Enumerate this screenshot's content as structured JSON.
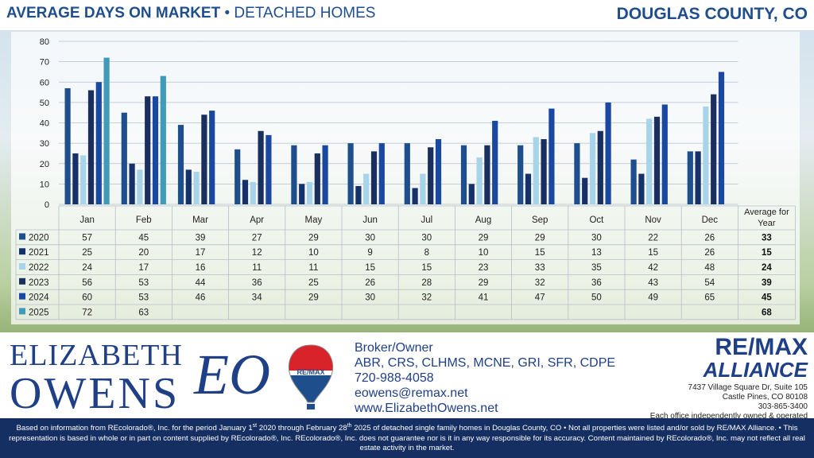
{
  "header": {
    "title_bold": "AVERAGE DAYS ON MARKET",
    "title_sep": " • ",
    "title_rest": "DETACHED HOMES",
    "region": "DOUGLAS COUNTY, CO"
  },
  "chart_data": {
    "type": "bar",
    "ylim": [
      0,
      80
    ],
    "yticks": [
      0,
      10,
      20,
      30,
      40,
      50,
      60,
      70,
      80
    ],
    "grid": true,
    "categories": [
      "Jan",
      "Feb",
      "Mar",
      "Apr",
      "May",
      "Jun",
      "Jul",
      "Aug",
      "Sep",
      "Oct",
      "Nov",
      "Dec"
    ],
    "average_header": "Average for Year",
    "series": [
      {
        "name": "2020",
        "color": "#1f4e8c",
        "values": [
          57,
          45,
          39,
          27,
          29,
          30,
          30,
          29,
          29,
          30,
          22,
          26
        ],
        "average": "33"
      },
      {
        "name": "2021",
        "color": "#16306a",
        "values": [
          25,
          20,
          17,
          12,
          10,
          9,
          8,
          10,
          15,
          13,
          15,
          26
        ],
        "average": "15"
      },
      {
        "name": "2022",
        "color": "#a7d4e8",
        "values": [
          24,
          17,
          16,
          11,
          11,
          15,
          15,
          23,
          33,
          35,
          42,
          48
        ],
        "average": "24"
      },
      {
        "name": "2023",
        "color": "#1a2f5e",
        "values": [
          56,
          53,
          44,
          36,
          25,
          26,
          28,
          29,
          32,
          36,
          43,
          54
        ],
        "average": "39"
      },
      {
        "name": "2024",
        "color": "#1a48a0",
        "values": [
          60,
          53,
          46,
          34,
          29,
          30,
          32,
          41,
          47,
          50,
          49,
          65
        ],
        "average": "45"
      },
      {
        "name": "2025",
        "color": "#3f9bb8",
        "values": [
          72,
          63,
          null,
          null,
          null,
          null,
          null,
          null,
          null,
          null,
          null,
          null
        ],
        "average": "68"
      }
    ]
  },
  "footer": {
    "name_first": "ELIZABETH",
    "name_last": "OWENS",
    "monogram": "EO",
    "balloon_text": "RE/MAX",
    "contact": {
      "title": "Broker/Owner",
      "designations": "ABR, CRS, CLHMS, MCNE, GRI, SFR, CDPE",
      "phone": "720-988-4058",
      "email": "eowens@remax.net",
      "website": "www.ElizabethOwens.net"
    },
    "brand": {
      "line1": "RE/MAX",
      "line2": "ALLIANCE",
      "address1": "7437 Village Square Dr, Suite 105",
      "address2": "Castle Pines, CO 80108",
      "phone": "303-865-3400",
      "note": "Each office independently owned & operated"
    },
    "balloon_colors": {
      "red": "#d8232a",
      "blue": "#1f4e8c",
      "white": "#ffffff"
    }
  },
  "disclaimer": {
    "part1": "Based on information from REcolorado®, Inc. for the period January 1",
    "sup1": "st",
    "part2": " 2020 through February 28",
    "sup2": "th",
    "part3": " 2025 of detached single family homes in Douglas County, CO • Not all properties were listed and/or sold by RE/MAX Alliance. • This representation is based in whole or in part on content supplied by REcolorado®, Inc. REcolorado®, Inc. does not guarantee nor is it in any way responsible for its accuracy. Content maintained by REcolorado®, Inc. may not reflect all real estate activity in the market."
  }
}
